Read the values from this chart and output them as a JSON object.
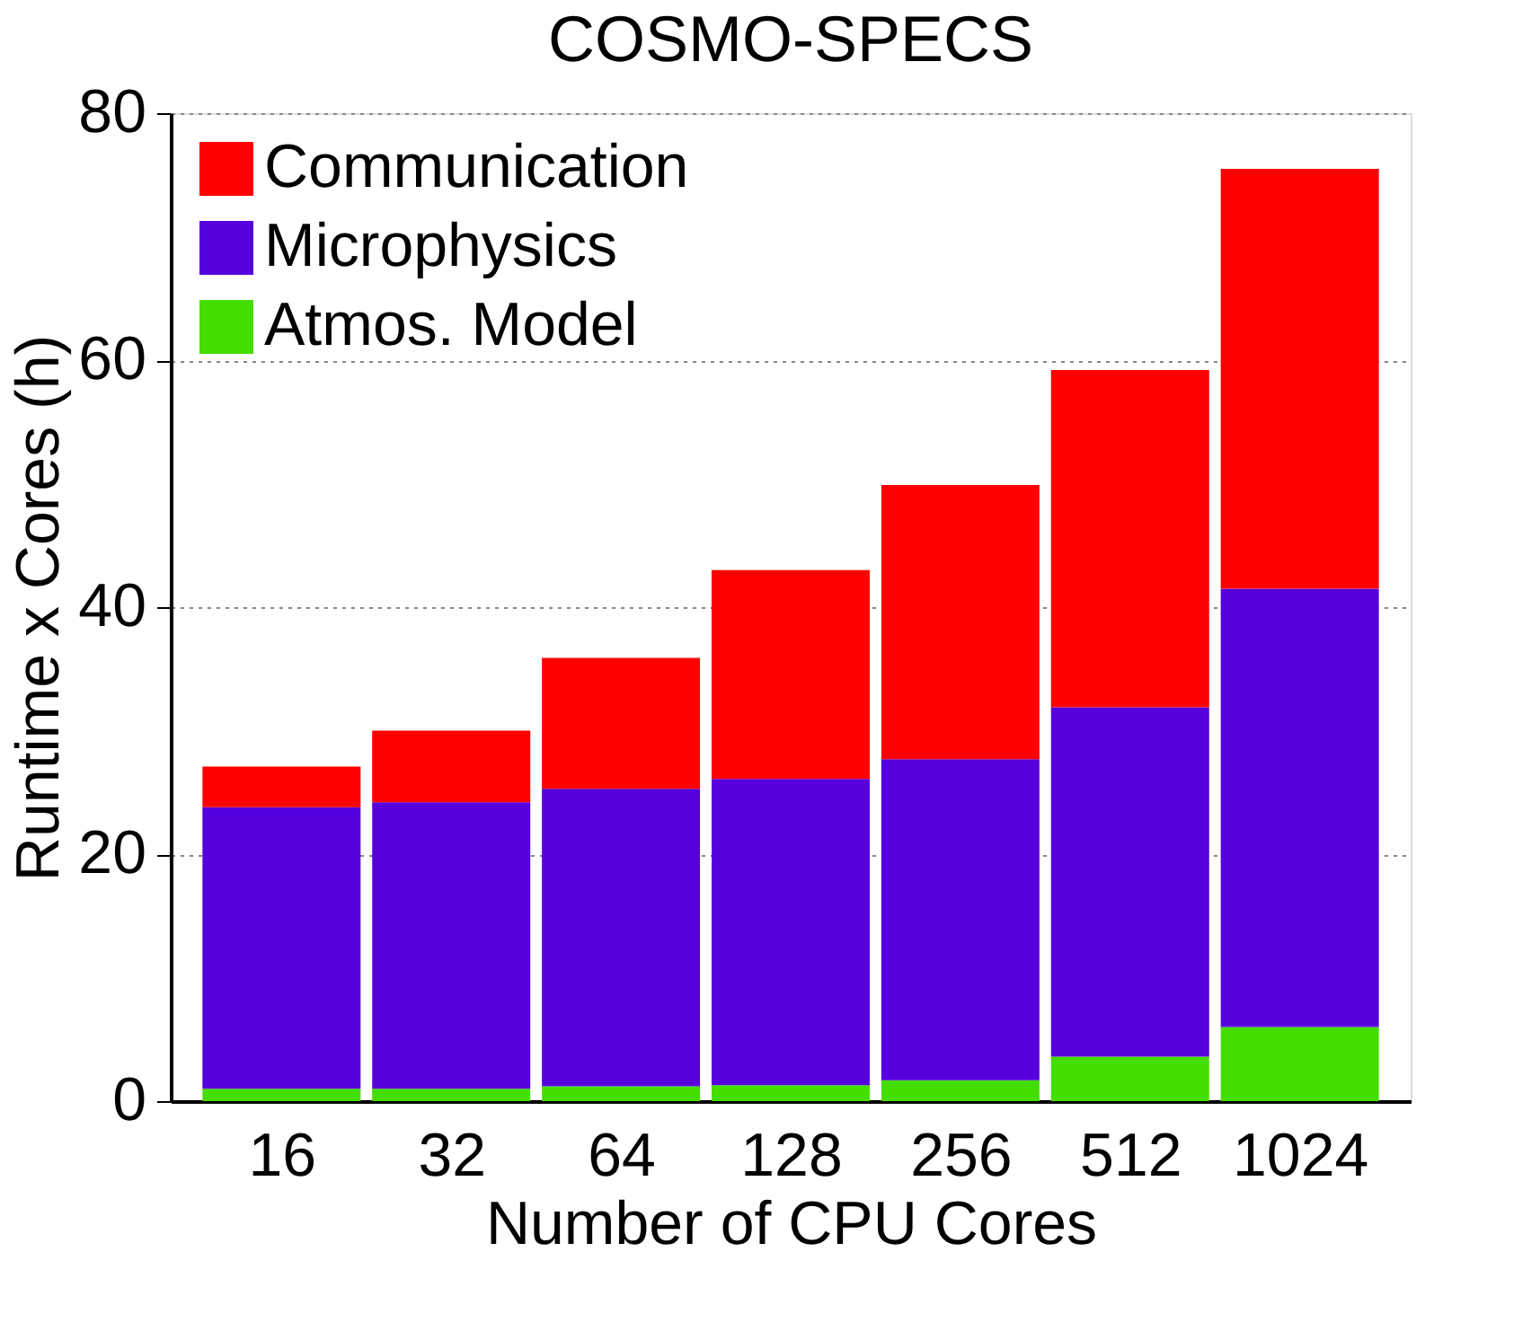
{
  "chart_data": {
    "type": "bar",
    "title": "COSMO-SPECS",
    "xlabel": "Number of CPU Cores",
    "ylabel": "Runtime x Cores (h)",
    "categories": [
      "16",
      "32",
      "64",
      "128",
      "256",
      "512",
      "1024"
    ],
    "stacked": true,
    "series": [
      {
        "name": "Atmos. Model",
        "color": "#44dd00",
        "values": [
          1.0,
          1.0,
          1.2,
          1.3,
          1.7,
          3.6,
          6.0
        ]
      },
      {
        "name": "Microphysics",
        "color": "#5500dd",
        "values": [
          22.8,
          23.2,
          24.1,
          24.8,
          26.0,
          28.3,
          35.5
        ]
      },
      {
        "name": "Communication",
        "color": "#ff0000",
        "values": [
          3.3,
          5.8,
          10.6,
          16.9,
          22.2,
          27.3,
          34.0
        ]
      }
    ],
    "ylim": [
      0,
      80
    ],
    "yticks": [
      0,
      20,
      40,
      60,
      80
    ],
    "grid": "y",
    "legend": "top left"
  }
}
